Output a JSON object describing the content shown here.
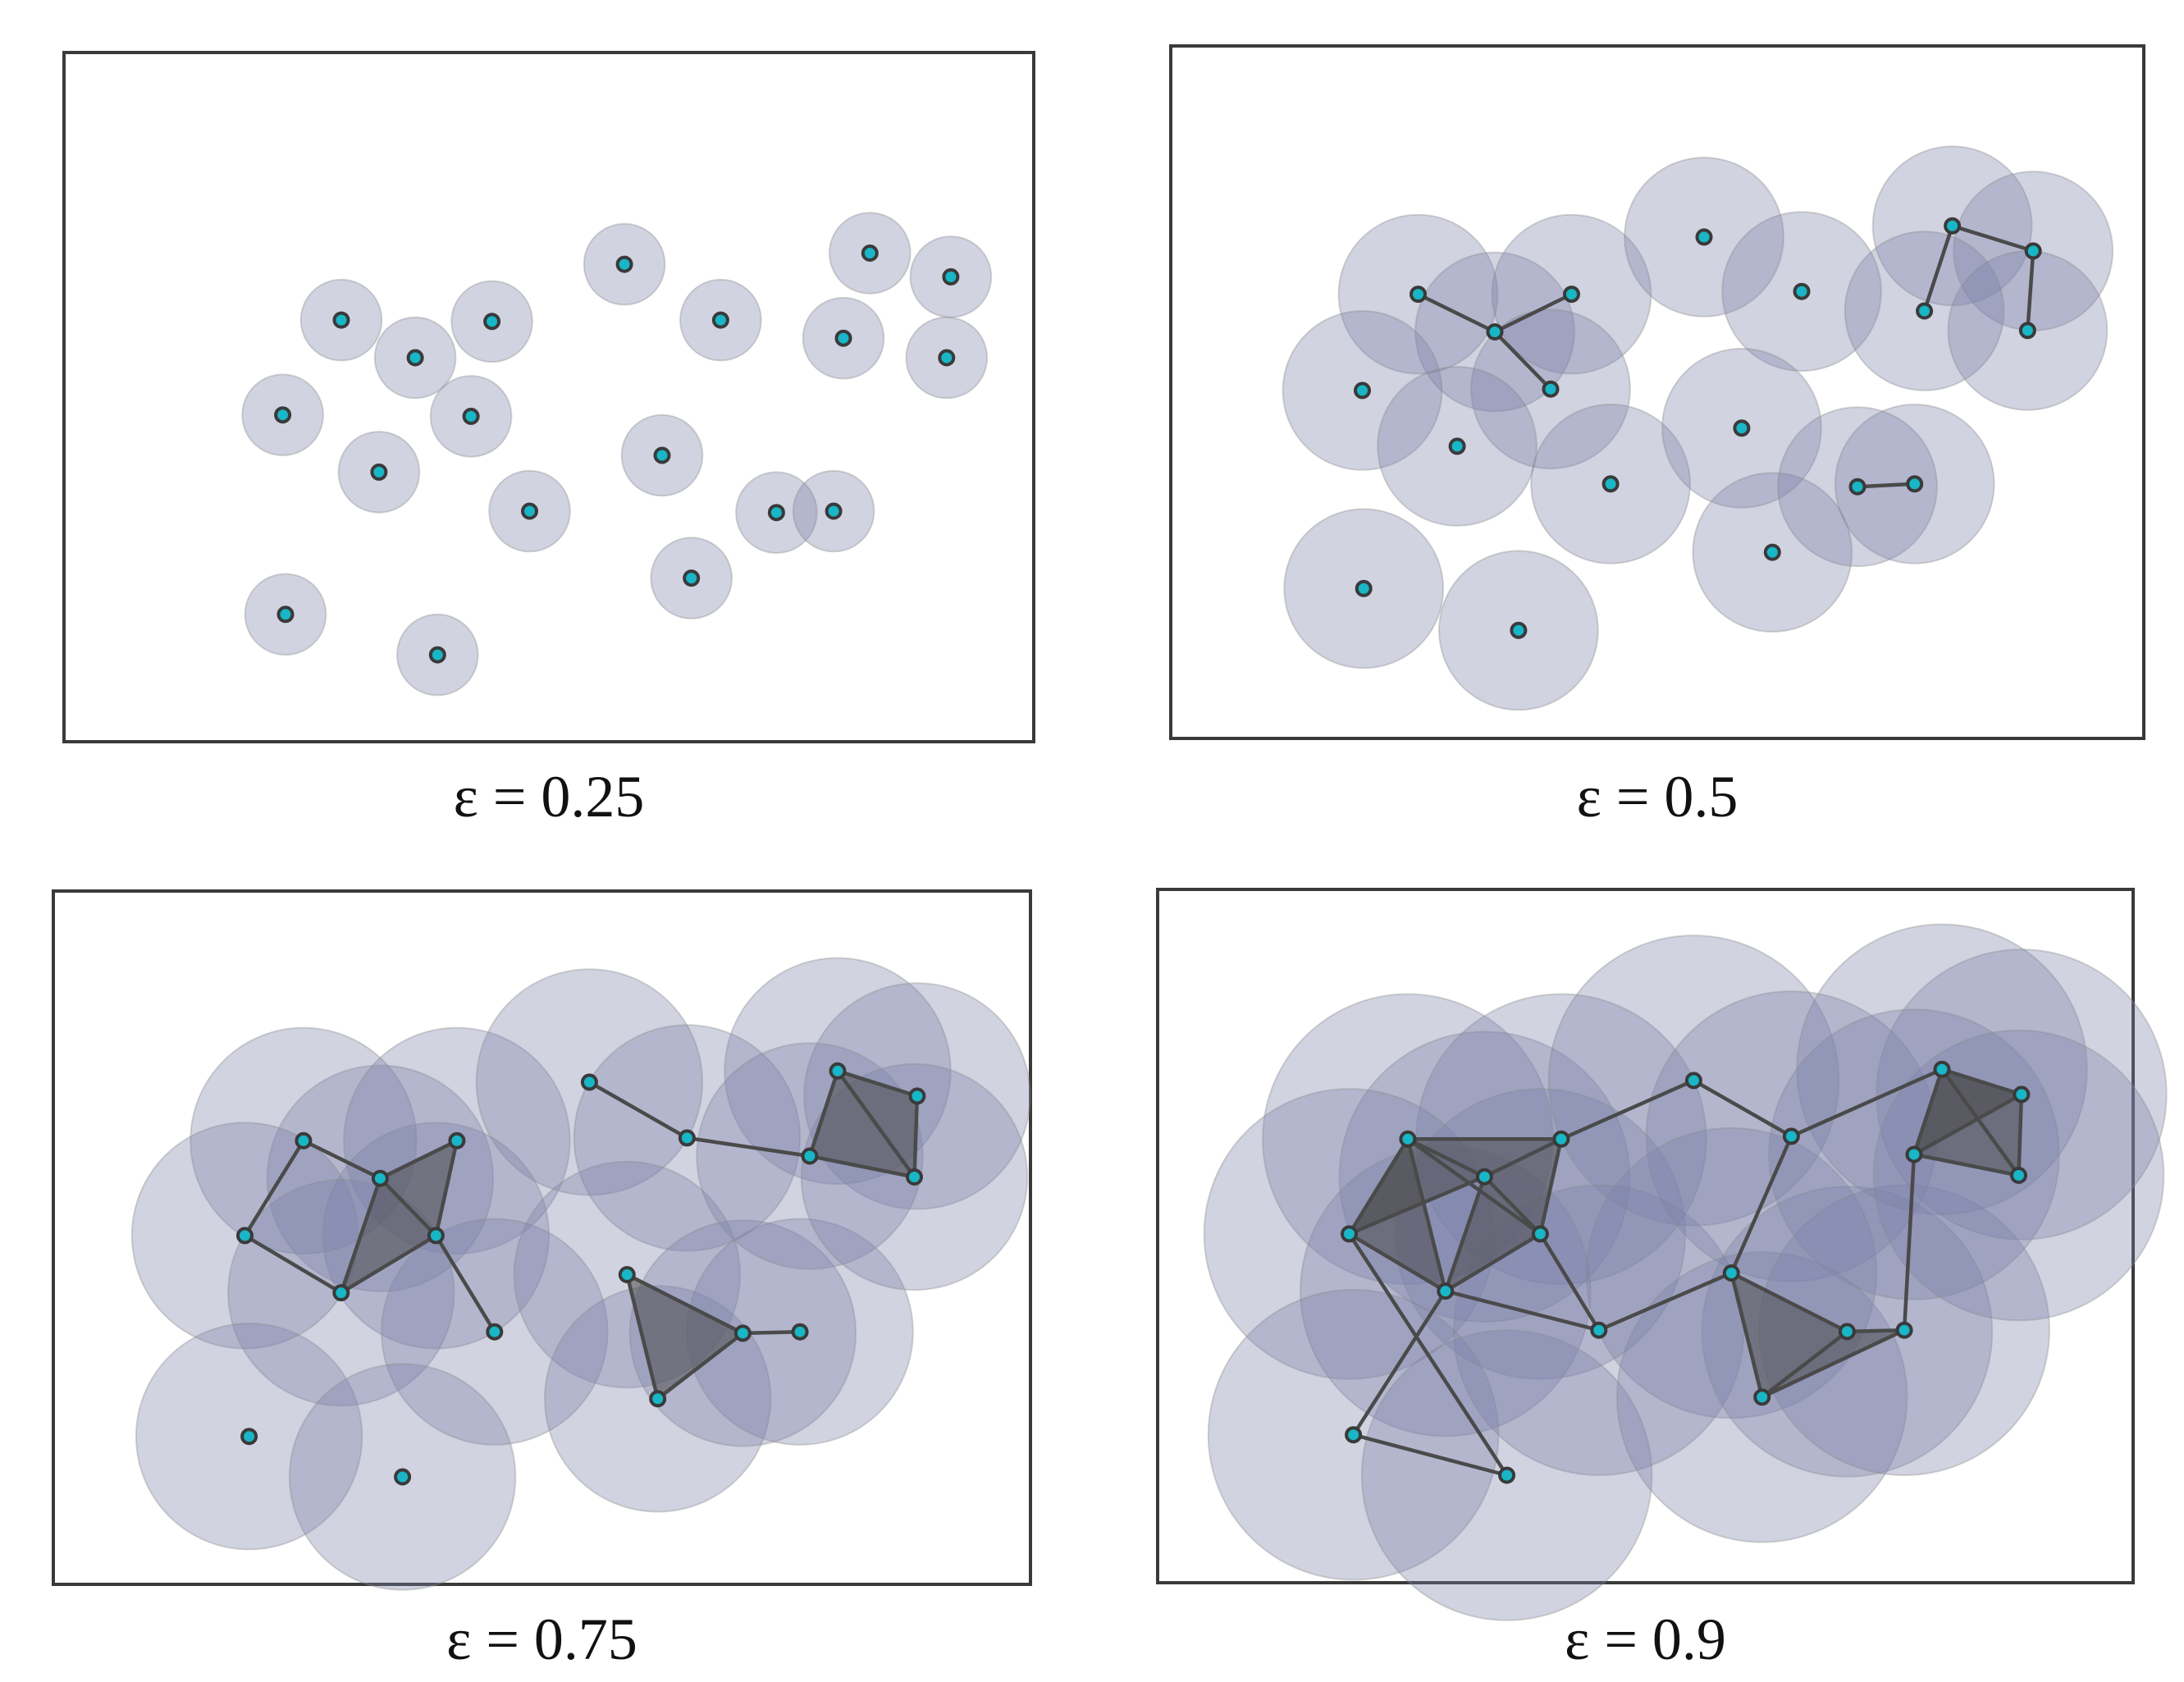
{
  "figure": {
    "panels": [
      {
        "caption": "ε = 0.25",
        "epsilon": 0.25,
        "ball_radius_px": 29,
        "points": [
          [
            200,
            193
          ],
          [
            253,
            220
          ],
          [
            308,
            194
          ],
          [
            158,
            261
          ],
          [
            293,
            262
          ],
          [
            227,
            302
          ],
          [
            335,
            330
          ],
          [
            160,
            404
          ],
          [
            269,
            433
          ],
          [
            403,
            153
          ],
          [
            472,
            193
          ],
          [
            430,
            290
          ],
          [
            451,
            378
          ],
          [
            512,
            331
          ],
          [
            553,
            330
          ],
          [
            579,
            145
          ],
          [
            637,
            162
          ],
          [
            560,
            206
          ],
          [
            634,
            220
          ]
        ],
        "edges": [],
        "triangles": []
      },
      {
        "caption": "ε = 0.5",
        "epsilon": 0.5,
        "ball_radius_px": 57,
        "points": [
          [
            155,
            158
          ],
          [
            210,
            185
          ],
          [
            265,
            158
          ],
          [
            115,
            227
          ],
          [
            250,
            226
          ],
          [
            183,
            267
          ],
          [
            293,
            294
          ],
          [
            116,
            369
          ],
          [
            227,
            399
          ],
          [
            360,
            117
          ],
          [
            430,
            156
          ],
          [
            387,
            254
          ],
          [
            409,
            343
          ],
          [
            470,
            296
          ],
          [
            511,
            294
          ],
          [
            538,
            109
          ],
          [
            596,
            127
          ],
          [
            518,
            170
          ],
          [
            592,
            184
          ]
        ],
        "edges": [
          [
            0,
            1
          ],
          [
            1,
            2
          ],
          [
            1,
            4
          ],
          [
            13,
            14
          ],
          [
            15,
            16
          ],
          [
            15,
            17
          ],
          [
            16,
            18
          ]
        ],
        "triangles": []
      },
      {
        "caption": "ε = 0.75",
        "epsilon": 0.75,
        "ball_radius_px": 81,
        "points": [
          [
            157,
            159
          ],
          [
            212,
            186
          ],
          [
            267,
            159
          ],
          [
            115,
            227
          ],
          [
            252,
            227
          ],
          [
            184,
            268
          ],
          [
            294,
            296
          ],
          [
            118,
            371
          ],
          [
            228,
            400
          ],
          [
            362,
            117
          ],
          [
            432,
            157
          ],
          [
            389,
            255
          ],
          [
            411,
            344
          ],
          [
            472,
            297
          ],
          [
            513,
            296
          ],
          [
            540,
            109
          ],
          [
            597,
            127
          ],
          [
            520,
            170
          ],
          [
            595,
            185
          ]
        ],
        "edges": [
          [
            0,
            1
          ],
          [
            0,
            3
          ],
          [
            1,
            2
          ],
          [
            1,
            4
          ],
          [
            1,
            5
          ],
          [
            2,
            4
          ],
          [
            3,
            5
          ],
          [
            4,
            5
          ],
          [
            4,
            6
          ],
          [
            9,
            10
          ],
          [
            10,
            17
          ],
          [
            11,
            12
          ],
          [
            11,
            13
          ],
          [
            12,
            13
          ],
          [
            13,
            14
          ],
          [
            15,
            16
          ],
          [
            15,
            17
          ],
          [
            15,
            18
          ],
          [
            16,
            18
          ],
          [
            17,
            18
          ]
        ],
        "triangles": [
          [
            1,
            2,
            4
          ],
          [
            1,
            4,
            5
          ],
          [
            11,
            12,
            13
          ],
          [
            15,
            16,
            18
          ],
          [
            15,
            17,
            18
          ]
        ]
      },
      {
        "caption": "ε = 0.9",
        "epsilon": 0.9,
        "ball_radius_px": 104,
        "points": [
          [
            157,
            159
          ],
          [
            212,
            186
          ],
          [
            267,
            159
          ],
          [
            115,
            227
          ],
          [
            252,
            227
          ],
          [
            184,
            268
          ],
          [
            294,
            296
          ],
          [
            118,
            371
          ],
          [
            228,
            400
          ],
          [
            362,
            117
          ],
          [
            432,
            157
          ],
          [
            389,
            255
          ],
          [
            411,
            344
          ],
          [
            472,
            297
          ],
          [
            513,
            296
          ],
          [
            540,
            109
          ],
          [
            597,
            127
          ],
          [
            520,
            170
          ],
          [
            595,
            185
          ]
        ],
        "edges": [
          [
            0,
            1
          ],
          [
            0,
            2
          ],
          [
            0,
            3
          ],
          [
            0,
            4
          ],
          [
            0,
            5
          ],
          [
            1,
            2
          ],
          [
            1,
            3
          ],
          [
            1,
            4
          ],
          [
            1,
            5
          ],
          [
            2,
            4
          ],
          [
            3,
            5
          ],
          [
            4,
            5
          ],
          [
            4,
            6
          ],
          [
            5,
            6
          ],
          [
            2,
            9
          ],
          [
            9,
            10
          ],
          [
            10,
            11
          ],
          [
            6,
            11
          ],
          [
            11,
            12
          ],
          [
            11,
            13
          ],
          [
            12,
            13
          ],
          [
            12,
            14
          ],
          [
            13,
            14
          ],
          [
            10,
            15
          ],
          [
            15,
            16
          ],
          [
            15,
            17
          ],
          [
            15,
            18
          ],
          [
            16,
            17
          ],
          [
            16,
            18
          ],
          [
            17,
            18
          ],
          [
            17,
            14
          ],
          [
            5,
            7
          ],
          [
            7,
            8
          ],
          [
            8,
            3
          ]
        ],
        "triangles": [
          [
            0,
            1,
            2
          ],
          [
            0,
            1,
            3
          ],
          [
            0,
            3,
            5
          ],
          [
            1,
            4,
            5
          ],
          [
            1,
            2,
            4
          ],
          [
            11,
            12,
            13
          ],
          [
            12,
            13,
            14
          ],
          [
            15,
            16,
            18
          ],
          [
            15,
            17,
            18
          ],
          [
            15,
            16,
            17
          ]
        ]
      }
    ],
    "colors": {
      "frame": "#3a3a3a",
      "ball_fill": "#7a80a8",
      "ball_stroke": "#8a8a8a",
      "edge": "#4a4a4a",
      "triangle_fill": "#4d4d4d",
      "point_fill": "#18b6c6",
      "point_stroke": "#3a3a3a"
    }
  }
}
